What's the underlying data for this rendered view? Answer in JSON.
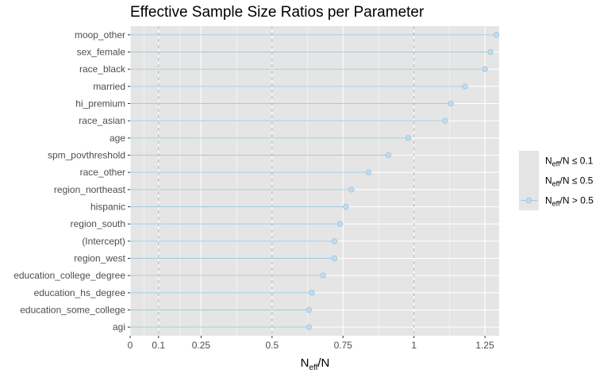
{
  "chart_data": {
    "type": "lollipop",
    "title": "Effective Sample Size Ratios per Parameter",
    "xlabel": {
      "main": "N",
      "sub": "eff",
      "rest": "/N"
    },
    "xlim": [
      0,
      1.3
    ],
    "x_ticks": [
      0,
      0.1,
      0.25,
      0.5,
      0.75,
      1,
      1.25
    ],
    "x_tick_labels": [
      "0",
      "0.1",
      "0.25",
      "0.5",
      "0.75",
      "1",
      "1.25"
    ],
    "reference_lines": [
      0.1,
      0.5,
      1
    ],
    "grid": true,
    "categories": [
      "moop_other",
      "sex_female",
      "race_black",
      "married",
      "hi_premium",
      "race_asian",
      "age",
      "spm_povthreshold",
      "race_other",
      "region_northeast",
      "hispanic",
      "region_south",
      "(Intercept)",
      "region_west",
      "education_college_degree",
      "education_hs_degree",
      "education_some_college",
      "agi"
    ],
    "values": [
      1.29,
      1.27,
      1.25,
      1.18,
      1.13,
      1.11,
      0.98,
      0.91,
      0.84,
      0.78,
      0.76,
      0.74,
      0.72,
      0.72,
      0.68,
      0.64,
      0.63,
      0.63
    ],
    "legend": {
      "position": "right",
      "entries": [
        {
          "main": "N",
          "sub": "eff",
          "rest": "/N ≤ 0.1"
        },
        {
          "main": "N",
          "sub": "eff",
          "rest": "/N ≤ 0.5"
        },
        {
          "main": "N",
          "sub": "eff",
          "rest": "/N > 0.5"
        }
      ]
    },
    "colors": {
      "panel": "#e5e5e5",
      "grid": "#ffffff",
      "point_fill": "#c6dbef",
      "point_stroke": "#9ecae1",
      "line": "#9ecae1",
      "reference": "#b3b3b3"
    }
  }
}
